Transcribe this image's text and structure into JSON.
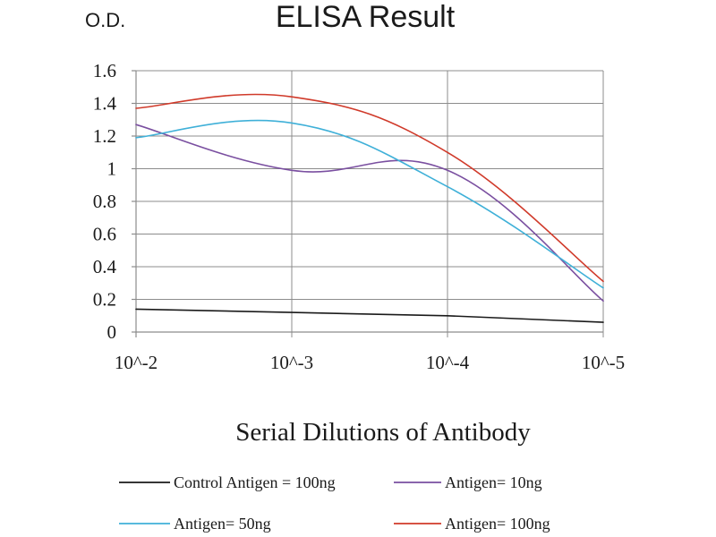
{
  "chart_data": {
    "type": "line",
    "title": "ELISA Result",
    "ylabel": "O.D.",
    "xlabel": "Serial Dilutions of Antibody",
    "categories": [
      "10^-2",
      "10^-3",
      "10^-4",
      "10^-5"
    ],
    "ylim": [
      0,
      1.6
    ],
    "yticks": [
      0,
      0.2,
      0.4,
      0.6,
      0.8,
      1,
      1.2,
      1.4,
      1.6
    ],
    "ytick_labels": [
      "0",
      "0.2",
      "0.4",
      "0.6",
      "0.8",
      "1",
      "1.2",
      "1.4",
      "1.6"
    ],
    "grid": true,
    "legend_position": "bottom",
    "series": [
      {
        "name": "Control Antigen = 100ng",
        "values": [
          0.14,
          0.12,
          0.1,
          0.06
        ],
        "color": "#1a1a1a"
      },
      {
        "name": "Antigen= 10ng",
        "values": [
          1.27,
          0.99,
          0.99,
          0.19
        ],
        "color": "#7a4fa0"
      },
      {
        "name": "Antigen= 50ng",
        "values": [
          1.19,
          1.28,
          0.89,
          0.27
        ],
        "color": "#3fb0d8"
      },
      {
        "name": "Antigen= 100ng",
        "values": [
          1.37,
          1.44,
          1.1,
          0.31
        ],
        "color": "#d03a2a"
      }
    ]
  }
}
